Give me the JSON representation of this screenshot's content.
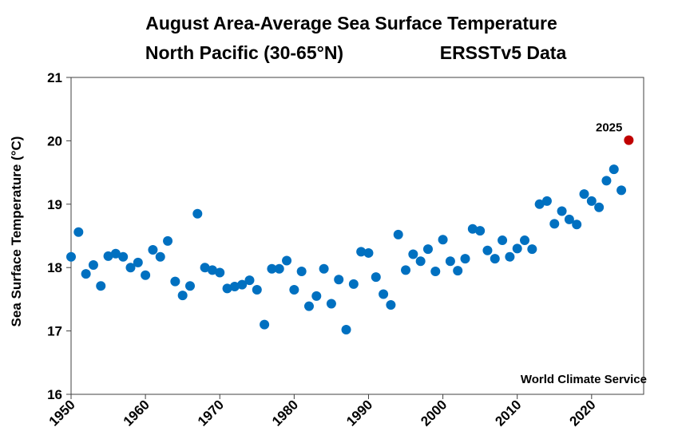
{
  "chart_data": {
    "type": "scatter",
    "title": "August Area-Average Sea Surface Temperature",
    "subtitle_left": "North Pacific (30-65°N)",
    "subtitle_right": "ERSSTv5 Data",
    "xlabel": "",
    "ylabel": "Sea Surface Temperature (°C)",
    "xlim": [
      1950,
      2027
    ],
    "ylim": [
      16,
      21
    ],
    "xticks": [
      1950,
      1960,
      1970,
      1980,
      1990,
      2000,
      2010,
      2020
    ],
    "yticks": [
      16,
      17,
      18,
      19,
      20,
      21
    ],
    "grid": false,
    "series": [
      {
        "color": "#0070C0",
        "points": [
          {
            "x": 1950,
            "y": 18.17
          },
          {
            "x": 1951,
            "y": 18.56
          },
          {
            "x": 1952,
            "y": 17.9
          },
          {
            "x": 1953,
            "y": 18.04
          },
          {
            "x": 1954,
            "y": 17.71
          },
          {
            "x": 1955,
            "y": 18.18
          },
          {
            "x": 1956,
            "y": 18.22
          },
          {
            "x": 1957,
            "y": 18.17
          },
          {
            "x": 1958,
            "y": 18.0
          },
          {
            "x": 1959,
            "y": 18.08
          },
          {
            "x": 1960,
            "y": 17.88
          },
          {
            "x": 1961,
            "y": 18.28
          },
          {
            "x": 1962,
            "y": 18.17
          },
          {
            "x": 1963,
            "y": 18.42
          },
          {
            "x": 1964,
            "y": 17.78
          },
          {
            "x": 1965,
            "y": 17.56
          },
          {
            "x": 1966,
            "y": 17.71
          },
          {
            "x": 1967,
            "y": 18.85
          },
          {
            "x": 1968,
            "y": 18.0
          },
          {
            "x": 1969,
            "y": 17.96
          },
          {
            "x": 1970,
            "y": 17.92
          },
          {
            "x": 1971,
            "y": 17.67
          },
          {
            "x": 1972,
            "y": 17.7
          },
          {
            "x": 1973,
            "y": 17.73
          },
          {
            "x": 1974,
            "y": 17.8
          },
          {
            "x": 1975,
            "y": 17.65
          },
          {
            "x": 1976,
            "y": 17.1
          },
          {
            "x": 1977,
            "y": 17.98
          },
          {
            "x": 1978,
            "y": 17.98
          },
          {
            "x": 1979,
            "y": 18.11
          },
          {
            "x": 1980,
            "y": 17.65
          },
          {
            "x": 1981,
            "y": 17.94
          },
          {
            "x": 1982,
            "y": 17.39
          },
          {
            "x": 1983,
            "y": 17.55
          },
          {
            "x": 1984,
            "y": 17.98
          },
          {
            "x": 1985,
            "y": 17.43
          },
          {
            "x": 1986,
            "y": 17.81
          },
          {
            "x": 1987,
            "y": 17.02
          },
          {
            "x": 1988,
            "y": 17.74
          },
          {
            "x": 1989,
            "y": 18.25
          },
          {
            "x": 1990,
            "y": 18.23
          },
          {
            "x": 1991,
            "y": 17.85
          },
          {
            "x": 1992,
            "y": 17.58
          },
          {
            "x": 1993,
            "y": 17.41
          },
          {
            "x": 1994,
            "y": 18.52
          },
          {
            "x": 1995,
            "y": 17.96
          },
          {
            "x": 1996,
            "y": 18.21
          },
          {
            "x": 1997,
            "y": 18.1
          },
          {
            "x": 1998,
            "y": 18.29
          },
          {
            "x": 1999,
            "y": 17.94
          },
          {
            "x": 2000,
            "y": 18.44
          },
          {
            "x": 2001,
            "y": 18.1
          },
          {
            "x": 2002,
            "y": 17.95
          },
          {
            "x": 2003,
            "y": 18.14
          },
          {
            "x": 2004,
            "y": 18.61
          },
          {
            "x": 2005,
            "y": 18.58
          },
          {
            "x": 2006,
            "y": 18.27
          },
          {
            "x": 2007,
            "y": 18.14
          },
          {
            "x": 2008,
            "y": 18.43
          },
          {
            "x": 2009,
            "y": 18.17
          },
          {
            "x": 2010,
            "y": 18.3
          },
          {
            "x": 2011,
            "y": 18.43
          },
          {
            "x": 2012,
            "y": 18.29
          },
          {
            "x": 2013,
            "y": 19.0
          },
          {
            "x": 2014,
            "y": 19.05
          },
          {
            "x": 2015,
            "y": 18.69
          },
          {
            "x": 2016,
            "y": 18.89
          },
          {
            "x": 2017,
            "y": 18.76
          },
          {
            "x": 2018,
            "y": 18.68
          },
          {
            "x": 2019,
            "y": 19.16
          },
          {
            "x": 2020,
            "y": 19.05
          },
          {
            "x": 2021,
            "y": 18.95
          },
          {
            "x": 2022,
            "y": 19.37
          },
          {
            "x": 2023,
            "y": 19.55
          },
          {
            "x": 2024,
            "y": 19.22
          }
        ]
      },
      {
        "color": "#C00000",
        "points": [
          {
            "x": 2025,
            "y": 20.01
          }
        ]
      }
    ],
    "annotations": [
      {
        "text": "2025",
        "x": 2025,
        "y": 20.01,
        "position": "upper-left"
      }
    ],
    "credit": "World Climate Service",
    "credit_position": "bottom-right"
  }
}
